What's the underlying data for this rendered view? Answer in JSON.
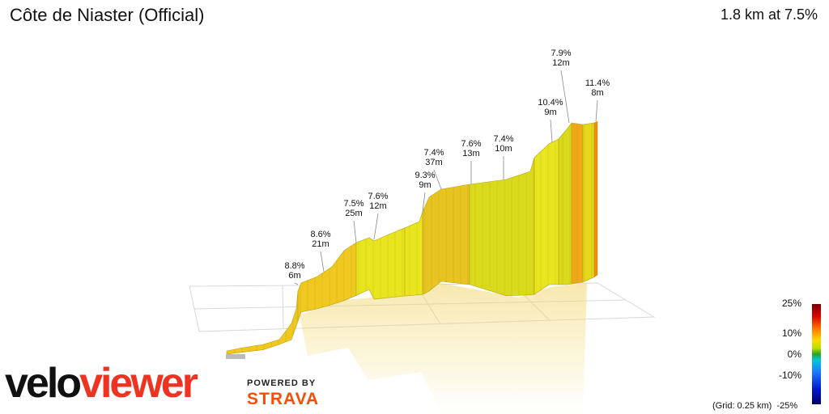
{
  "header": {
    "title": "Côte de Niaster (Official)",
    "summary": "1.8 km at 7.5%"
  },
  "chart_data": {
    "type": "area",
    "title": "Côte de Niaster (Official)",
    "summary_distance_km": 1.8,
    "summary_gradient_pct": 7.5,
    "segments": [
      {
        "gradient": "8.8%",
        "rise": "6m",
        "gradient_pct": 8.8,
        "rise_m": 6
      },
      {
        "gradient": "8.6%",
        "rise": "21m",
        "gradient_pct": 8.6,
        "rise_m": 21
      },
      {
        "gradient": "7.5%",
        "rise": "25m",
        "gradient_pct": 7.5,
        "rise_m": 25
      },
      {
        "gradient": "7.6%",
        "rise": "12m",
        "gradient_pct": 7.6,
        "rise_m": 12
      },
      {
        "gradient": "9.3%",
        "rise": "9m",
        "gradient_pct": 9.3,
        "rise_m": 9
      },
      {
        "gradient": "7.4%",
        "rise": "37m",
        "gradient_pct": 7.4,
        "rise_m": 37
      },
      {
        "gradient": "7.6%",
        "rise": "13m",
        "gradient_pct": 7.6,
        "rise_m": 13
      },
      {
        "gradient": "7.4%",
        "rise": "10m",
        "gradient_pct": 7.4,
        "rise_m": 10
      },
      {
        "gradient": "10.4%",
        "rise": "9m",
        "gradient_pct": 10.4,
        "rise_m": 9
      },
      {
        "gradient": "7.9%",
        "rise": "12m",
        "gradient_pct": 7.9,
        "rise_m": 12
      },
      {
        "gradient": "11.4%",
        "rise": "8m",
        "gradient_pct": 11.4,
        "rise_m": 8
      }
    ],
    "color_scale": {
      "labels": [
        "25%",
        "10%",
        "0%",
        "-10%",
        "-25%"
      ],
      "values": [
        25,
        10,
        0,
        -10,
        -25
      ]
    },
    "grid_note": "(Grid: 0.25 km)"
  },
  "branding": {
    "logo_part1": "velo",
    "logo_part2": "viewer",
    "powered_by": "POWERED BY",
    "strava": "STRAVA",
    "logo_color": "#ee3322",
    "strava_color": "#fc4c02"
  }
}
